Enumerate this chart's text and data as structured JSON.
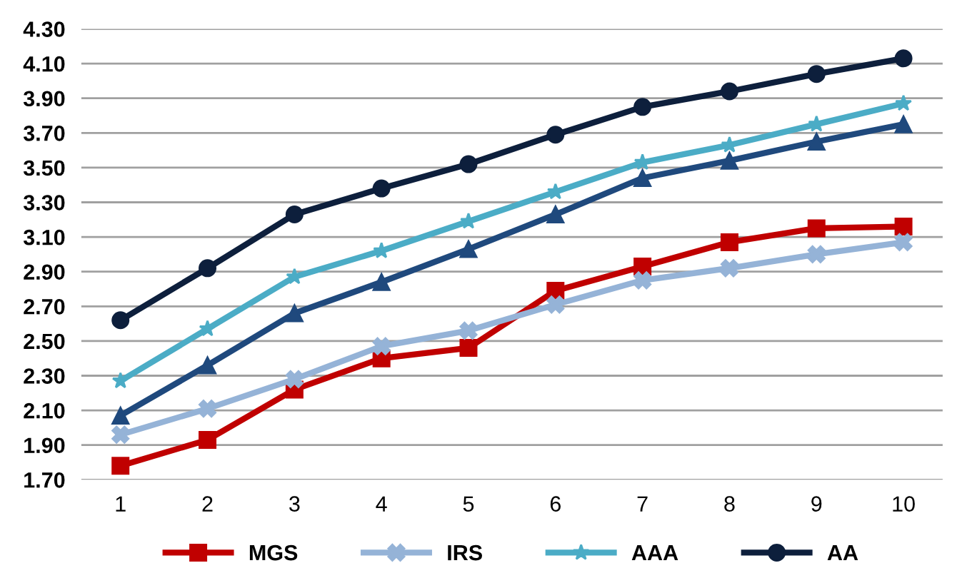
{
  "chart_data": {
    "type": "line",
    "categories": [
      "1",
      "2",
      "3",
      "4",
      "5",
      "6",
      "7",
      "8",
      "9",
      "10"
    ],
    "series": [
      {
        "name": "MGS",
        "color": "#c00000",
        "marker": "square",
        "values": [
          1.78,
          1.93,
          2.22,
          2.4,
          2.46,
          2.79,
          2.93,
          3.07,
          3.15,
          3.16
        ]
      },
      {
        "color": "#1f497d",
        "marker": "triangle",
        "values": [
          2.07,
          2.36,
          2.66,
          2.84,
          3.03,
          3.23,
          3.44,
          3.54,
          3.65,
          3.75
        ]
      },
      {
        "name": "IRS",
        "color": "#95b3d7",
        "marker": "cross",
        "values": [
          1.96,
          2.11,
          2.28,
          2.47,
          2.56,
          2.71,
          2.85,
          2.92,
          3.0,
          3.07
        ]
      },
      {
        "name": "AAA",
        "color": "#4bacc6",
        "marker": "star",
        "values": [
          2.27,
          2.57,
          2.87,
          3.02,
          3.19,
          3.36,
          3.53,
          3.63,
          3.75,
          3.87
        ]
      },
      {
        "name": "AA",
        "color": "#0d1f3c",
        "marker": "circle",
        "values": [
          2.62,
          2.92,
          3.23,
          3.38,
          3.52,
          3.69,
          3.85,
          3.94,
          4.04,
          4.13
        ]
      }
    ],
    "ylim": [
      1.7,
      4.3
    ],
    "yticks": [
      {
        "value": 1.7,
        "label": "1.70"
      },
      {
        "value": 1.9,
        "label": "1.90"
      },
      {
        "value": 2.1,
        "label": "2.10"
      },
      {
        "value": 2.3,
        "label": "2.30"
      },
      {
        "value": 2.5,
        "label": "2.50"
      },
      {
        "value": 2.7,
        "label": "2.70"
      },
      {
        "value": 2.9,
        "label": "2.90"
      },
      {
        "value": 3.1,
        "label": "3.10"
      },
      {
        "value": 3.3,
        "label": "3.30"
      },
      {
        "value": 3.5,
        "label": "3.50"
      },
      {
        "value": 3.7,
        "label": "3.70"
      },
      {
        "value": 3.9,
        "label": "3.90"
      },
      {
        "value": 4.1,
        "label": "4.10"
      },
      {
        "value": 4.3,
        "label": "4.30"
      }
    ],
    "grid": "y",
    "legend": "bottom",
    "line_style": "solid"
  }
}
